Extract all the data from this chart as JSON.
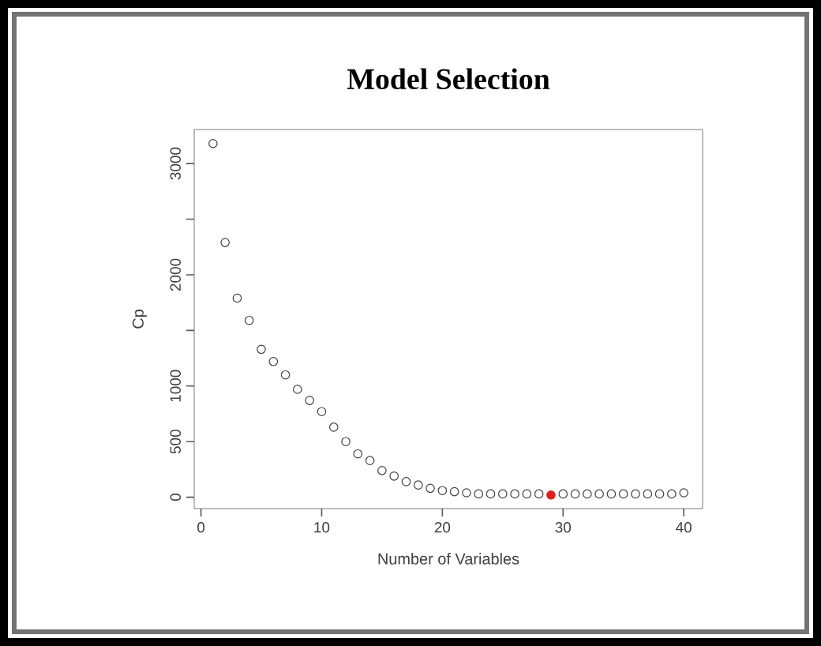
{
  "chart_data": {
    "type": "scatter",
    "title": "Model Selection",
    "xlabel": "Number of Variables",
    "ylabel": "Cp",
    "marker": "circle",
    "grid": false,
    "xlim": [
      -0.56,
      41.56
    ],
    "xticks": [
      0,
      10,
      20,
      30,
      40
    ],
    "ylim": [
      -102,
      3306
    ],
    "yticks": [
      0,
      500,
      1000,
      {
        "value": 1500,
        "label": null
      },
      2000,
      {
        "value": 2500,
        "label": null
      },
      3000
    ],
    "series": [
      {
        "color": "#404040",
        "x": [
          1,
          2,
          3,
          4,
          5,
          6,
          7,
          8,
          9,
          10,
          11,
          12,
          13,
          14,
          15,
          16,
          17,
          18,
          19,
          20,
          21,
          22,
          23,
          24,
          25,
          26,
          27,
          28,
          30,
          31,
          32,
          33,
          34,
          35,
          36,
          37,
          38,
          39,
          40
        ],
        "values": [
          3180,
          2290,
          1790,
          1590,
          1330,
          1220,
          1100,
          970,
          870,
          770,
          630,
          500,
          390,
          330,
          240,
          190,
          140,
          110,
          80,
          60,
          50,
          40,
          30,
          30,
          30,
          30,
          30,
          30,
          30,
          30,
          30,
          30,
          30,
          30,
          30,
          30,
          30,
          30,
          40
        ]
      },
      {
        "color": "#e02020",
        "x": [
          29
        ],
        "values": [
          20
        ]
      }
    ]
  }
}
